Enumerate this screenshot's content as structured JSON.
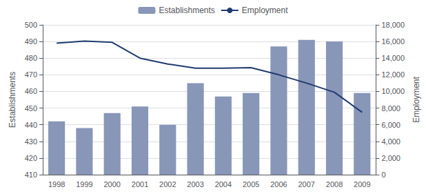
{
  "chart_data": {
    "type": "bar",
    "categories": [
      "1998",
      "1999",
      "2000",
      "2001",
      "2002",
      "2003",
      "2004",
      "2005",
      "2006",
      "2007",
      "2008",
      "2009"
    ],
    "series": [
      {
        "name": "Establishments",
        "type": "bar",
        "color": "#8896b8",
        "values": [
          442,
          438,
          447,
          451,
          440,
          465,
          457,
          459,
          487,
          491,
          490,
          459
        ]
      },
      {
        "name": "Employment",
        "type": "line",
        "axis": "y2",
        "color": "#1f3a6e",
        "values": [
          15800,
          16050,
          15900,
          14000,
          13300,
          12800,
          12800,
          12850,
          12000,
          11000,
          9900,
          7500
        ]
      }
    ],
    "ylabel": "Establishments",
    "y2label": "Employment",
    "ylim": [
      410,
      500
    ],
    "yticks": [
      410,
      420,
      430,
      440,
      450,
      460,
      470,
      480,
      490,
      500
    ],
    "y2lim": [
      0,
      18000
    ],
    "y2ticks": [
      0,
      {
        "value": 2000,
        "label": "2,000"
      },
      {
        "value": 4000,
        "label": "4,000"
      },
      {
        "value": 6000,
        "label": "6,000"
      },
      {
        "value": 8000,
        "label": "8,000"
      },
      {
        "value": 10000,
        "label": "10,000"
      },
      {
        "value": 12000,
        "label": "12,000"
      },
      {
        "value": 14000,
        "label": "14,000"
      },
      {
        "value": 16000,
        "label": "16,000"
      },
      {
        "value": 18000,
        "label": "18,000"
      }
    ],
    "grid": true,
    "legend": "top"
  }
}
